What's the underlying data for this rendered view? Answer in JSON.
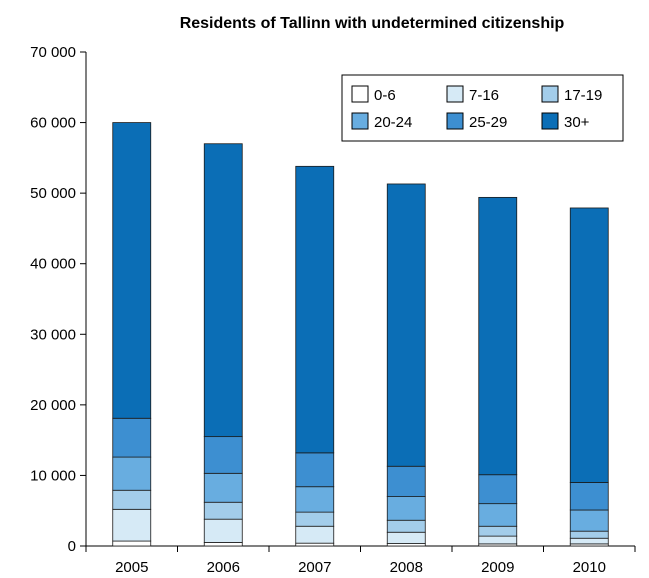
{
  "chart_data": {
    "type": "bar",
    "stacked": true,
    "title": "Residents of Tallinn with undetermined citizenship",
    "xlabel": "",
    "ylabel": "",
    "ylim": [
      0,
      70000
    ],
    "y_ticks": [
      0,
      10000,
      20000,
      30000,
      40000,
      50000,
      60000,
      70000
    ],
    "y_tick_labels": [
      "0",
      "10 000",
      "20 000",
      "30 000",
      "40 000",
      "50 000",
      "60 000",
      "70 000"
    ],
    "categories": [
      "2005",
      "2006",
      "2007",
      "2008",
      "2009",
      "2010"
    ],
    "grid": false,
    "legend_position": "top-right",
    "series": [
      {
        "name": "0-6",
        "color": "#ffffff",
        "values": [
          700,
          500,
          400,
          350,
          300,
          300
        ]
      },
      {
        "name": "7-16",
        "color": "#d6eaf6",
        "values": [
          4500,
          3300,
          2400,
          1600,
          1100,
          800
        ]
      },
      {
        "name": "17-19",
        "color": "#a3cdea",
        "values": [
          2700,
          2400,
          2000,
          1700,
          1400,
          1000
        ]
      },
      {
        "name": "20-24",
        "color": "#68ade0",
        "values": [
          4700,
          4100,
          3600,
          3350,
          3200,
          3000
        ]
      },
      {
        "name": "25-29",
        "color": "#3d8fd1",
        "values": [
          5500,
          5200,
          4800,
          4300,
          4100,
          3900
        ]
      },
      {
        "name": "30+",
        "color": "#0b6eb6",
        "values": [
          41900,
          41500,
          40600,
          40000,
          39300,
          38900
        ]
      }
    ]
  }
}
